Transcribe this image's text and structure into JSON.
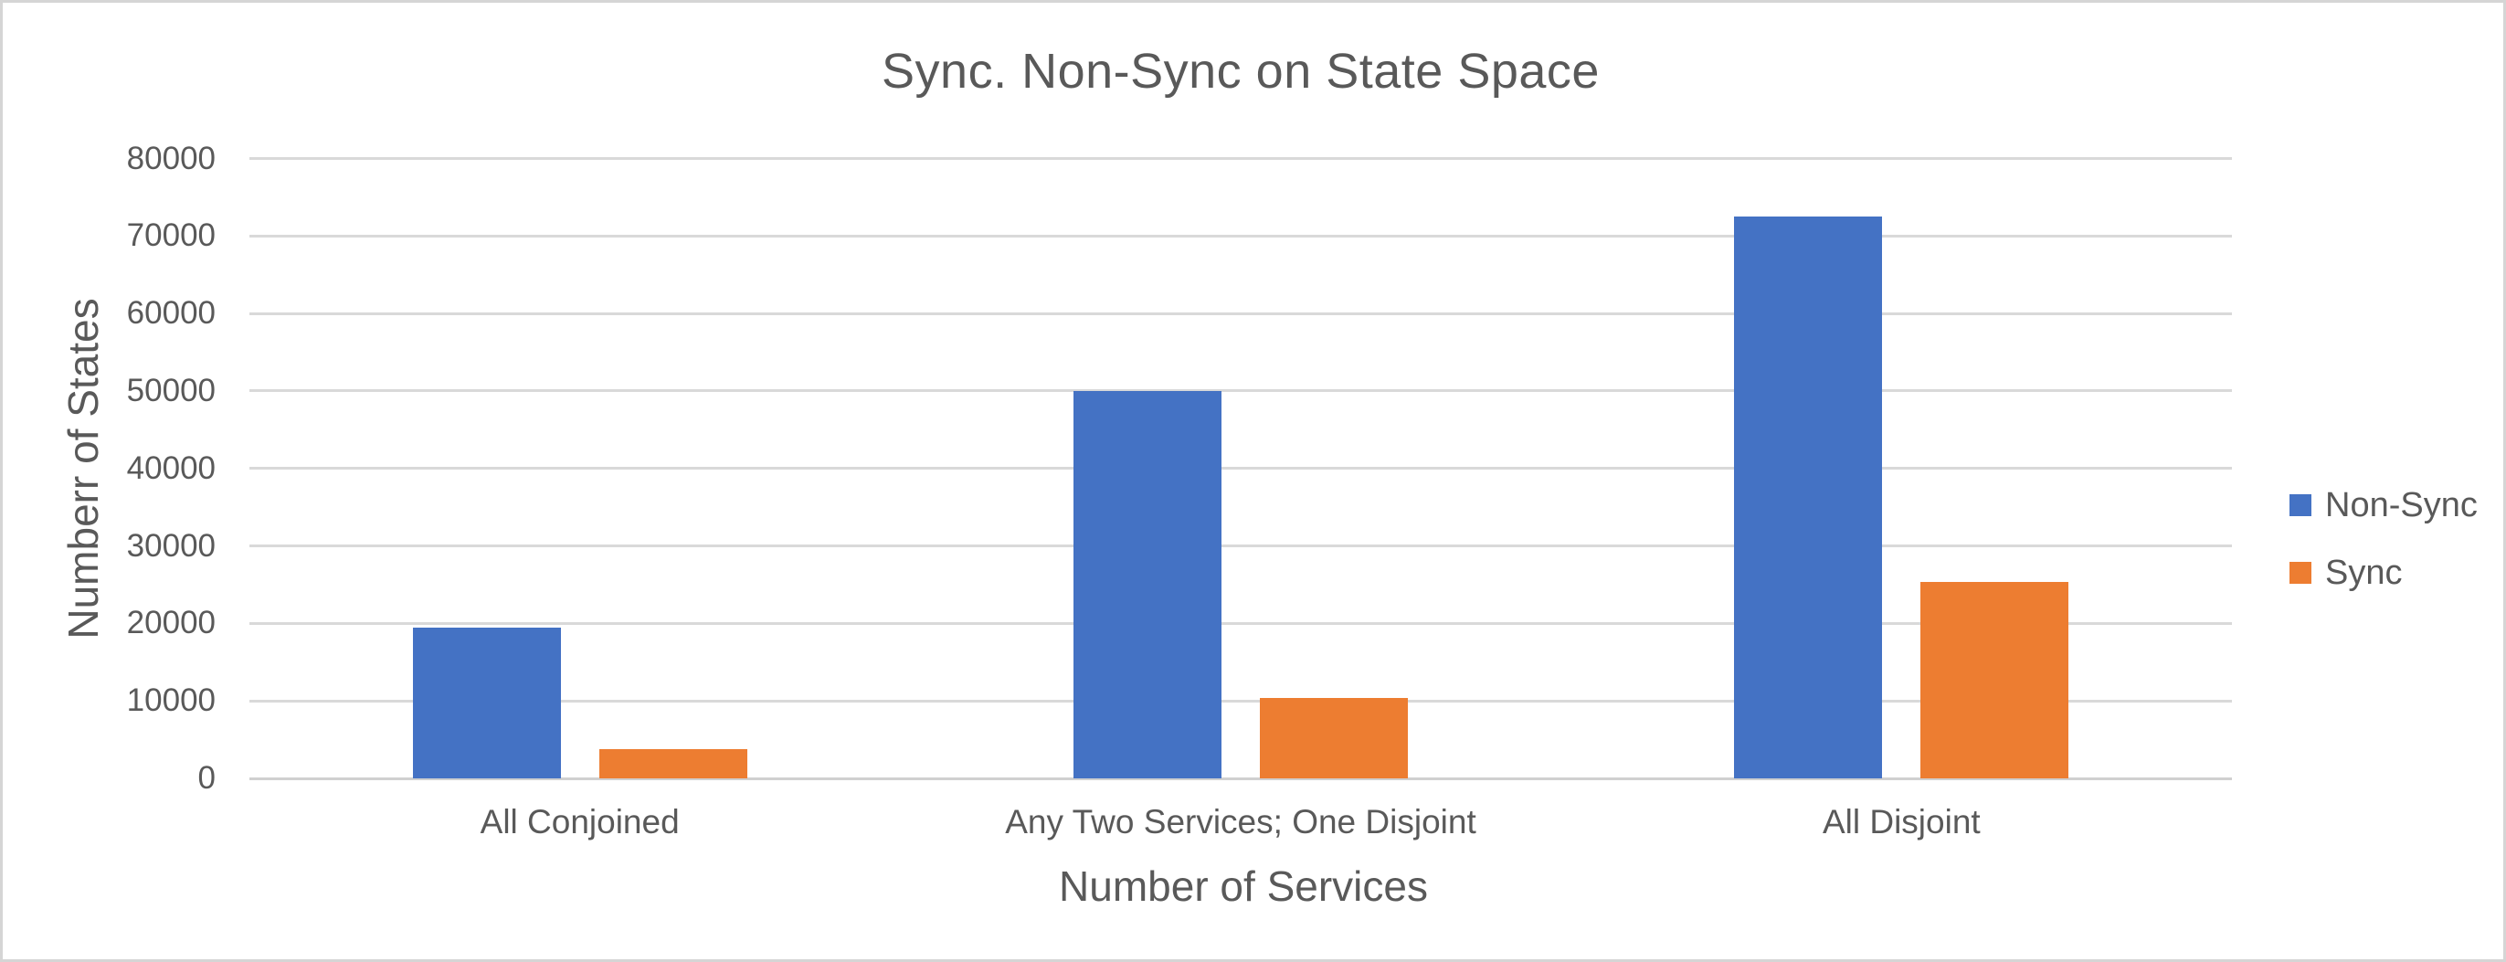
{
  "chart_data": {
    "type": "bar",
    "title": "Sync. Non-Sync on State Space",
    "xlabel": "Number of Services",
    "ylabel": "Numberr of States",
    "categories": [
      "All Conjoined",
      "Any Two Services; One Disjoint",
      "All Disjoint"
    ],
    "series": [
      {
        "name": "Non-Sync",
        "color": "#4472C4",
        "values": [
          19500,
          50000,
          72500
        ]
      },
      {
        "name": "Sync",
        "color": "#ED7D31",
        "values": [
          3800,
          10400,
          25300
        ]
      }
    ],
    "ylim": [
      0,
      80000
    ],
    "ytick_step": 10000,
    "yticks": [
      0,
      10000,
      20000,
      30000,
      40000,
      50000,
      60000,
      70000,
      80000
    ],
    "grid": "horizontal",
    "legend_position": "right"
  },
  "colors": {
    "text": "#595959",
    "gridline": "#D9D9D9",
    "axis_line": "#D0D0D0",
    "background": "#FFFFFF",
    "border": "#D5D5D5",
    "non_sync_bar": "#4472C4",
    "sync_bar": "#ED7D31"
  }
}
